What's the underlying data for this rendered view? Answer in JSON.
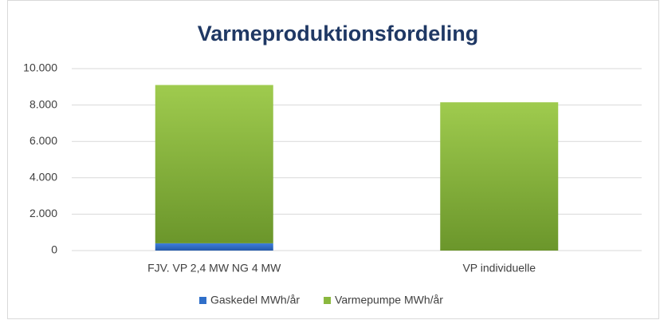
{
  "chart_data": {
    "type": "stacked_bar",
    "title": "Varmeproduktionsfordeling",
    "categories": [
      "FJV. VP 2,4 MW NG 4 MW",
      "VP individuelle"
    ],
    "series": [
      {
        "name": "Gaskedel MWh/år",
        "color": "#2f6fc9",
        "values": [
          400,
          0
        ]
      },
      {
        "name": "Varmepumpe MWh/år",
        "color": "#8ab83e",
        "values": [
          8700,
          8150
        ]
      }
    ],
    "ylim": [
      0,
      10000
    ],
    "yticks": [
      0,
      {
        "value": 2000,
        "label": "2.000"
      },
      {
        "value": 4000,
        "label": "4.000"
      },
      {
        "value": 6000,
        "label": "6.000"
      },
      {
        "value": 8000,
        "label": "8.000"
      },
      {
        "value": 10000,
        "label": "10.000"
      }
    ],
    "grid": true,
    "legend": "bottom"
  }
}
